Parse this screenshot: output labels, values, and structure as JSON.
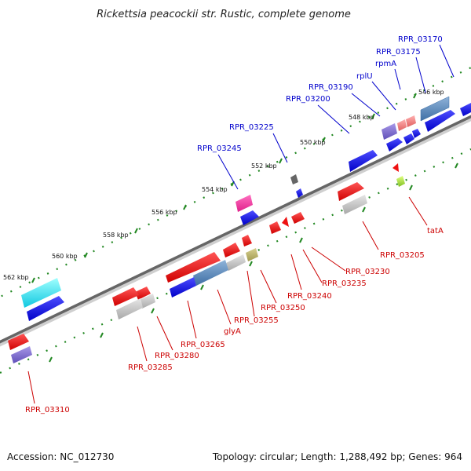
{
  "title": "Rickettsia peacockii str. Rustic, complete genome",
  "footer": {
    "accession": "Accession: NC_012730",
    "summary": "Topology: circular; Length: 1,288,492 bp; Genes: 964"
  },
  "ticks": [
    "546 kbp",
    "548 kbp",
    "550 kbp",
    "552 kbp",
    "554 kbp",
    "556 kbp",
    "558 kbp",
    "560 kbp",
    "562 kbp"
  ],
  "upper_labels": [
    "RPR_03170",
    "RPR_03175",
    "rpmA",
    "rplU",
    "RPR_03190",
    "RPR_03200",
    "RPR_03225",
    "RPR_03245"
  ],
  "lower_labels": [
    "tatA",
    "RPR_03205",
    "RPR_03230",
    "RPR_03235",
    "RPR_03240",
    "RPR_03250",
    "RPR_03255",
    "glyA",
    "RPR_03265",
    "RPR_03280",
    "RPR_03285",
    "RPR_03310"
  ],
  "colors": {
    "forward_label": "#0000cc",
    "reverse_label": "#cc0000",
    "backbone": "#777777",
    "tick_mark": "#228822"
  }
}
